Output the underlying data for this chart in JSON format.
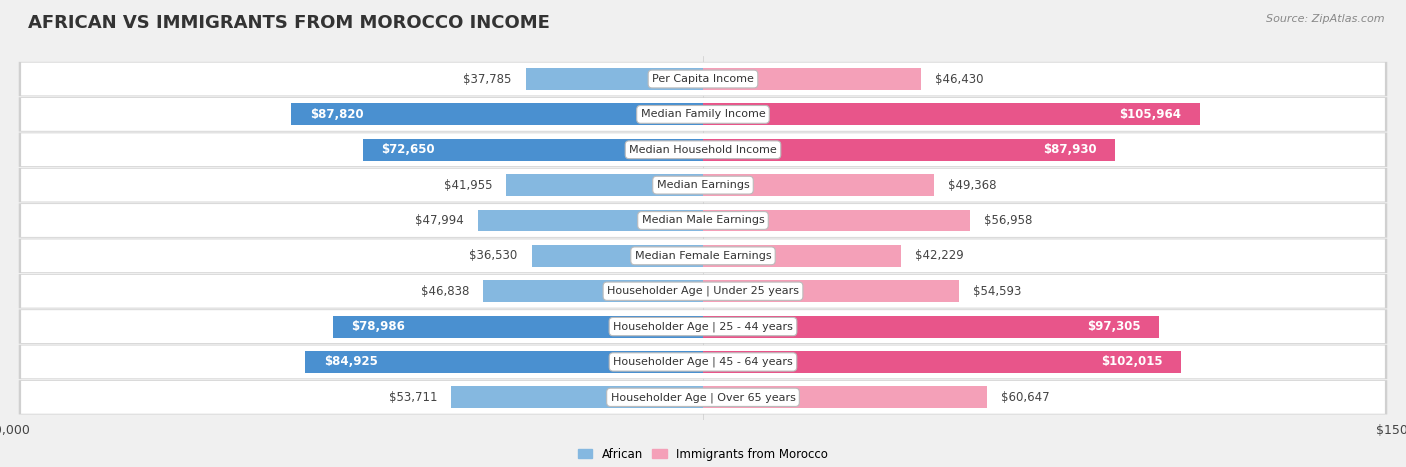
{
  "title": "AFRICAN VS IMMIGRANTS FROM MOROCCO INCOME",
  "source": "Source: ZipAtlas.com",
  "categories": [
    "Per Capita Income",
    "Median Family Income",
    "Median Household Income",
    "Median Earnings",
    "Median Male Earnings",
    "Median Female Earnings",
    "Householder Age | Under 25 years",
    "Householder Age | 25 - 44 years",
    "Householder Age | 45 - 64 years",
    "Householder Age | Over 65 years"
  ],
  "african_values": [
    37785,
    87820,
    72650,
    41955,
    47994,
    36530,
    46838,
    78986,
    84925,
    53711
  ],
  "morocco_values": [
    46430,
    105964,
    87930,
    49368,
    56958,
    42229,
    54593,
    97305,
    102015,
    60647
  ],
  "african_labels": [
    "$37,785",
    "$87,820",
    "$72,650",
    "$41,955",
    "$47,994",
    "$36,530",
    "$46,838",
    "$78,986",
    "$84,925",
    "$53,711"
  ],
  "morocco_labels": [
    "$46,430",
    "$105,964",
    "$87,930",
    "$49,368",
    "$56,958",
    "$42,229",
    "$54,593",
    "$97,305",
    "$102,015",
    "$60,647"
  ],
  "max_value": 150000,
  "african_color": "#85b8e0",
  "african_color_dark": "#4a90d0",
  "morocco_color": "#f4a0b8",
  "morocco_color_dark": "#e8558a",
  "inside_label_threshold": 70000,
  "background_color": "#f0f0f0",
  "row_bg_color": "#ffffff",
  "row_border_color": "#cccccc",
  "legend_african": "African",
  "legend_morocco": "Immigrants from Morocco",
  "xlim": 150000,
  "bar_height": 0.62,
  "title_fontsize": 13,
  "label_fontsize": 8.5,
  "cat_fontsize": 8,
  "legend_fontsize": 8.5
}
